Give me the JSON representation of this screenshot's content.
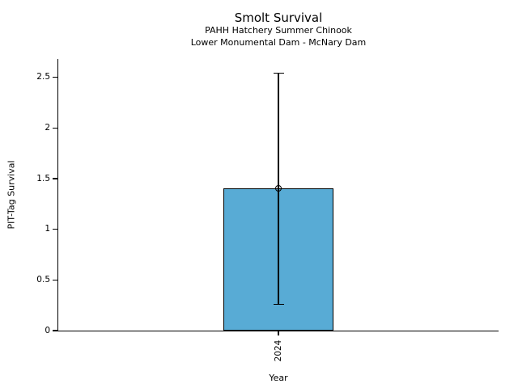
{
  "figure": {
    "background_color": "#ffffff",
    "text_color": "#000000"
  },
  "chart_data": {
    "type": "bar",
    "title": "Smolt Survival",
    "subtitle1": "PAHH Hatchery Summer Chinook",
    "subtitle2": "Lower Monumental Dam - McNary Dam",
    "xlabel": "Year",
    "ylabel": "PIT-Tag Survival",
    "categories": [
      "2024"
    ],
    "values": [
      1.4
    ],
    "error_low": [
      0.26
    ],
    "error_high": [
      2.54
    ],
    "marker": "open-circle",
    "yticks": [
      0,
      0.5,
      1,
      1.5,
      2,
      2.5
    ],
    "ylim": [
      0,
      2.68
    ],
    "grid": false,
    "legend": null,
    "bar_color": "#58abd5",
    "bar_edge_color": "#000000",
    "errorbar_color": "#000000"
  }
}
